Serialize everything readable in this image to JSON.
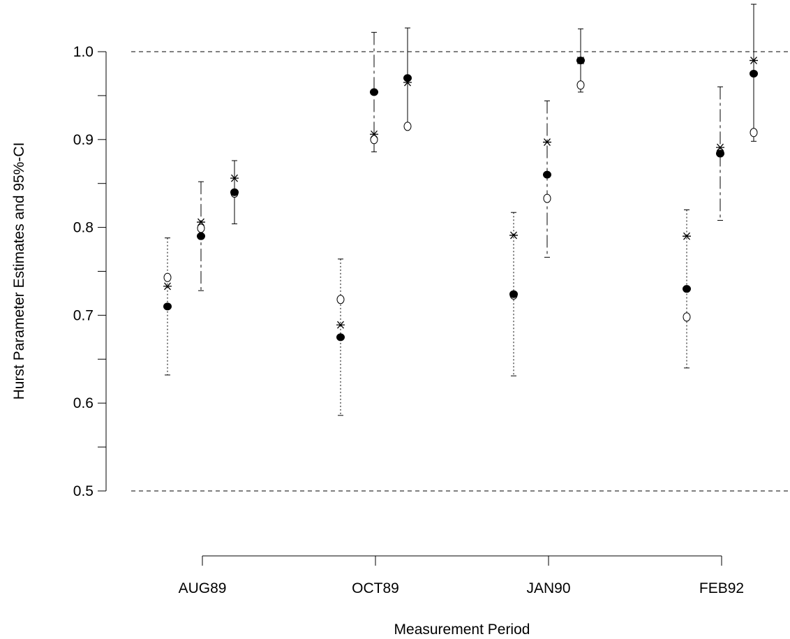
{
  "chart_data": {
    "type": "scatter",
    "title": "",
    "xlabel": "Measurement Period",
    "ylabel": "Hurst Parameter Estimates and 95%-CI",
    "ylim": [
      0.5,
      1.0
    ],
    "y_ticks_labeled": [
      "0.5",
      "0.6",
      "0.7",
      "0.8",
      "0.9",
      "1.0"
    ],
    "y_ticks_minor": [
      0.55,
      0.65,
      0.75,
      0.85,
      0.95
    ],
    "reference_lines": [
      0.5,
      1.0
    ],
    "grid": false,
    "categories": [
      "AUG89",
      "OCT89",
      "JAN90",
      "FEB92"
    ],
    "groups": [
      {
        "category": "AUG89",
        "intervals": [
          {
            "ci": [
              0.632,
              0.788
            ],
            "filled": 0.71,
            "open": 0.743,
            "star": 0.733,
            "style": "dotted"
          },
          {
            "ci": [
              0.728,
              0.852
            ],
            "filled": 0.79,
            "open": 0.799,
            "star": 0.806,
            "style": "dashed"
          },
          {
            "ci": [
              0.804,
              0.876
            ],
            "filled": 0.84,
            "open": 0.839,
            "star": 0.856,
            "style": "solid"
          }
        ]
      },
      {
        "category": "OCT89",
        "intervals": [
          {
            "ci": [
              0.586,
              0.764
            ],
            "filled": 0.675,
            "open": 0.718,
            "star": 0.689,
            "style": "dotted"
          },
          {
            "ci": [
              0.886,
              1.022
            ],
            "filled": 0.954,
            "open": 0.9,
            "star": 0.906,
            "style": "dashed"
          },
          {
            "ci": [
              0.913,
              1.027
            ],
            "filled": 0.97,
            "open": 0.915,
            "star": 0.965,
            "style": "solid"
          }
        ]
      },
      {
        "category": "JAN90",
        "intervals": [
          {
            "ci": [
              0.631,
              0.817
            ],
            "filled": 0.724,
            "open": 0.723,
            "star": 0.791,
            "style": "dotted"
          },
          {
            "ci": [
              0.766,
              0.944
            ],
            "filled": 0.86,
            "open": 0.833,
            "star": 0.897,
            "style": "dashed"
          },
          {
            "ci": [
              0.954,
              1.026
            ],
            "filled": 0.99,
            "open": 0.962,
            "star": 0.99,
            "style": "solid"
          }
        ]
      },
      {
        "category": "FEB92",
        "intervals": [
          {
            "ci": [
              0.64,
              0.82
            ],
            "filled": 0.73,
            "open": 0.698,
            "star": 0.79,
            "style": "dotted"
          },
          {
            "ci": [
              0.808,
              0.96
            ],
            "filled": 0.884,
            "open": 0.885,
            "star": 0.891,
            "style": "dashed"
          },
          {
            "ci": [
              0.898,
              1.054
            ],
            "filled": 0.975,
            "open": 0.908,
            "star": 0.99,
            "style": "solid"
          }
        ]
      }
    ]
  }
}
